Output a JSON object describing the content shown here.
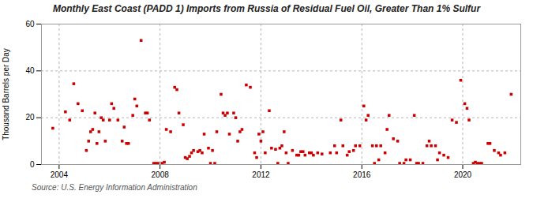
{
  "chart_data": {
    "type": "scatter",
    "title": "Monthly East Coast (PADD 1) Imports from Russia of Residual Fuel Oil, Greater Than 1% Sulfur",
    "ylabel": "Thousand Barrels per Day",
    "source": "Source: U.S. Energy Information Administration",
    "color": "#cc0000",
    "marker": "square",
    "grid": true,
    "xlim": [
      2003.3,
      2022.3
    ],
    "xticks": [
      2004,
      2008,
      2012,
      2016,
      2020
    ],
    "ylim": [
      0,
      60
    ],
    "yticks": [
      0,
      20,
      40,
      60
    ],
    "x": [
      2003.75,
      2004.25,
      2004.42,
      2004.58,
      2004.75,
      2004.92,
      2005.08,
      2005.17,
      2005.25,
      2005.33,
      2005.42,
      2005.5,
      2005.58,
      2005.67,
      2005.75,
      2005.83,
      2006.0,
      2006.08,
      2006.17,
      2006.33,
      2006.5,
      2006.58,
      2006.67,
      2006.75,
      2006.92,
      2007.0,
      2007.08,
      2007.25,
      2007.42,
      2007.5,
      2007.58,
      2007.75,
      2007.83,
      2007.92,
      2008.08,
      2008.17,
      2008.25,
      2008.42,
      2008.58,
      2008.67,
      2008.75,
      2008.92,
      2009.0,
      2009.08,
      2009.17,
      2009.25,
      2009.33,
      2009.5,
      2009.58,
      2009.67,
      2009.75,
      2009.92,
      2010.0,
      2010.08,
      2010.17,
      2010.25,
      2010.42,
      2010.5,
      2010.58,
      2010.67,
      2010.75,
      2010.92,
      2011.0,
      2011.08,
      2011.17,
      2011.25,
      2011.42,
      2011.58,
      2011.75,
      2011.83,
      2011.92,
      2012.0,
      2012.08,
      2012.17,
      2012.33,
      2012.42,
      2012.58,
      2012.67,
      2012.75,
      2012.83,
      2012.92,
      2013.0,
      2013.08,
      2013.25,
      2013.42,
      2013.5,
      2013.58,
      2013.67,
      2013.75,
      2013.92,
      2014.0,
      2014.08,
      2014.25,
      2014.42,
      2014.75,
      2014.92,
      2015.0,
      2015.17,
      2015.25,
      2015.42,
      2015.5,
      2015.67,
      2015.75,
      2015.92,
      2016.08,
      2016.17,
      2016.25,
      2016.42,
      2016.5,
      2016.58,
      2016.67,
      2016.75,
      2016.92,
      2017.0,
      2017.08,
      2017.25,
      2017.42,
      2017.5,
      2017.67,
      2017.75,
      2017.92,
      2018.08,
      2018.17,
      2018.25,
      2018.42,
      2018.58,
      2018.67,
      2018.75,
      2018.92,
      2019.0,
      2019.08,
      2019.25,
      2019.42,
      2019.58,
      2019.75,
      2019.92,
      2020.08,
      2020.17,
      2020.25,
      2020.42,
      2020.5,
      2020.58,
      2020.67,
      2020.75,
      2021.0,
      2021.08,
      2021.25,
      2021.42,
      2021.5,
      2021.67,
      2021.92
    ],
    "values": [
      15.5,
      22.5,
      19.0,
      34.5,
      26.0,
      23.0,
      6.0,
      10.0,
      14.0,
      15.0,
      22.0,
      9.0,
      14.0,
      20.0,
      19.0,
      10.0,
      19.0,
      26.0,
      24.0,
      19.0,
      10.0,
      16.0,
      9.0,
      9.0,
      21.0,
      28.0,
      25.0,
      53.0,
      22.0,
      22.0,
      19.0,
      0.5,
      0.5,
      0.5,
      0.5,
      1.0,
      15.0,
      14.0,
      33.0,
      32.0,
      22.0,
      17.0,
      3.0,
      2.5,
      3.5,
      5.0,
      6.0,
      5.5,
      6.0,
      5.0,
      13.0,
      7.0,
      0.5,
      6.0,
      0.5,
      14.0,
      30.0,
      22.0,
      21.0,
      22.0,
      13.0,
      22.0,
      20.0,
      10.0,
      14.0,
      15.0,
      34.0,
      33.0,
      5.0,
      3.0,
      13.0,
      10.0,
      14.0,
      5.0,
      23.0,
      7.0,
      6.5,
      0.5,
      7.0,
      8.0,
      14.0,
      5.0,
      0.5,
      6.0,
      4.0,
      4.0,
      5.5,
      5.5,
      4.0,
      5.0,
      5.0,
      4.0,
      5.0,
      4.5,
      5.0,
      8.0,
      5.0,
      19.0,
      8.0,
      4.0,
      5.5,
      6.0,
      8.0,
      8.0,
      25.0,
      19.0,
      21.0,
      8.0,
      0.5,
      8.0,
      2.0,
      8.0,
      5.0,
      15.0,
      21.0,
      11.0,
      10.0,
      0.5,
      0.5,
      2.0,
      2.0,
      21.0,
      0.5,
      0.5,
      0.5,
      8.0,
      10.0,
      8.0,
      8.0,
      2.0,
      5.0,
      4.0,
      3.0,
      19.0,
      18.0,
      36.0,
      26.0,
      24.0,
      19.0,
      0.5,
      1.0,
      0.5,
      0.5,
      0.5,
      9.0,
      9.0,
      6.0,
      5.0,
      4.0,
      5.0,
      30.0
    ]
  }
}
